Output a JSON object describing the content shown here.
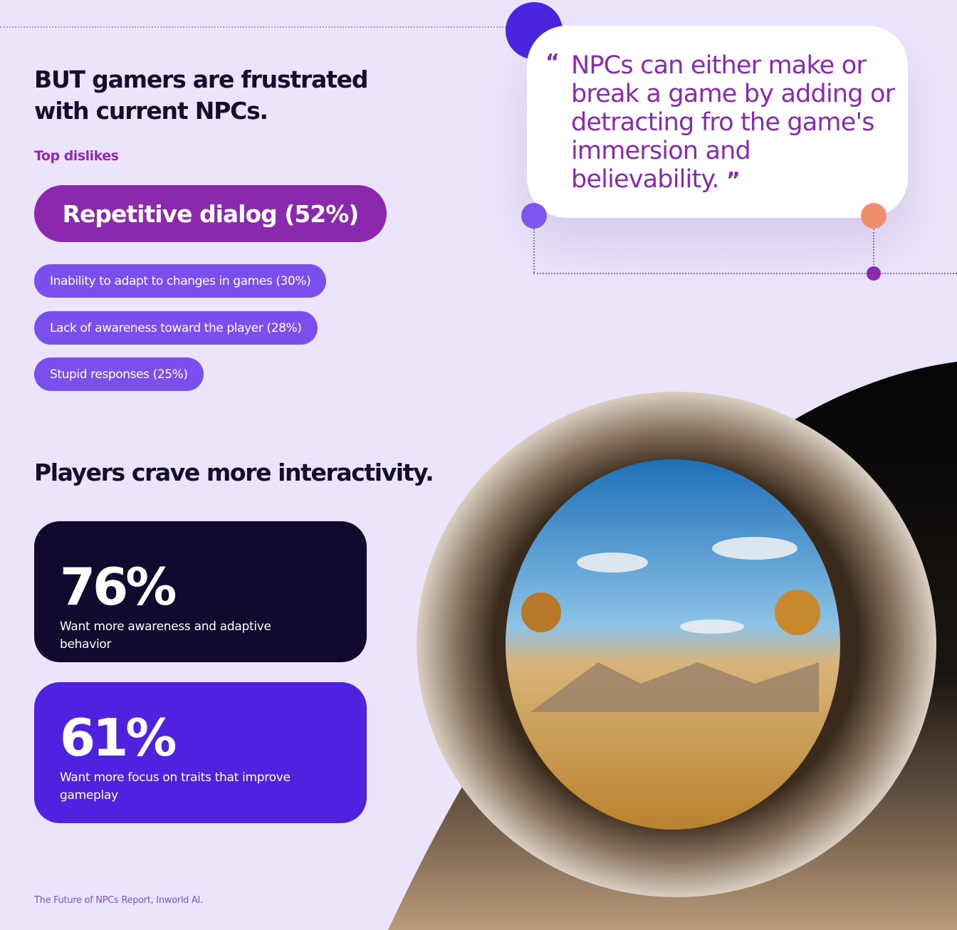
{
  "left": {
    "heading": "BUT gamers are frustrated with current NPCs.",
    "subheading": "Top dislikes",
    "top_dislike": "Repetitive dialog (52%)",
    "dislikes": [
      "Inability to adapt to changes in games (30%)",
      "Lack of awareness toward the player (28%)",
      "Stupid responses (25%)"
    ],
    "heading2": "Players crave more interactivity.",
    "stats": [
      {
        "value": "76%",
        "label": "Want more awareness and adaptive behavior",
        "color": "#120a2e"
      },
      {
        "value": "61%",
        "label": "Want more focus on traits that improve gameplay",
        "color": "#4f22e0"
      }
    ],
    "source": "The Future of NPCs Report, Inworld AI."
  },
  "quote": {
    "open_mark": "“",
    "text": "NPCs can either make or break a game by adding or detracting fro the game's immersion and believability.",
    "close_mark": "”"
  },
  "colors": {
    "background": "#ebe4fb",
    "accent_purple": "#8c28ae",
    "pill_violet": "#7b4fee",
    "dark": "#120a2e",
    "indigo": "#4f22e0",
    "orange_dot": "#ee8e6a"
  },
  "illustration": "portal-ring-desert-landscape"
}
